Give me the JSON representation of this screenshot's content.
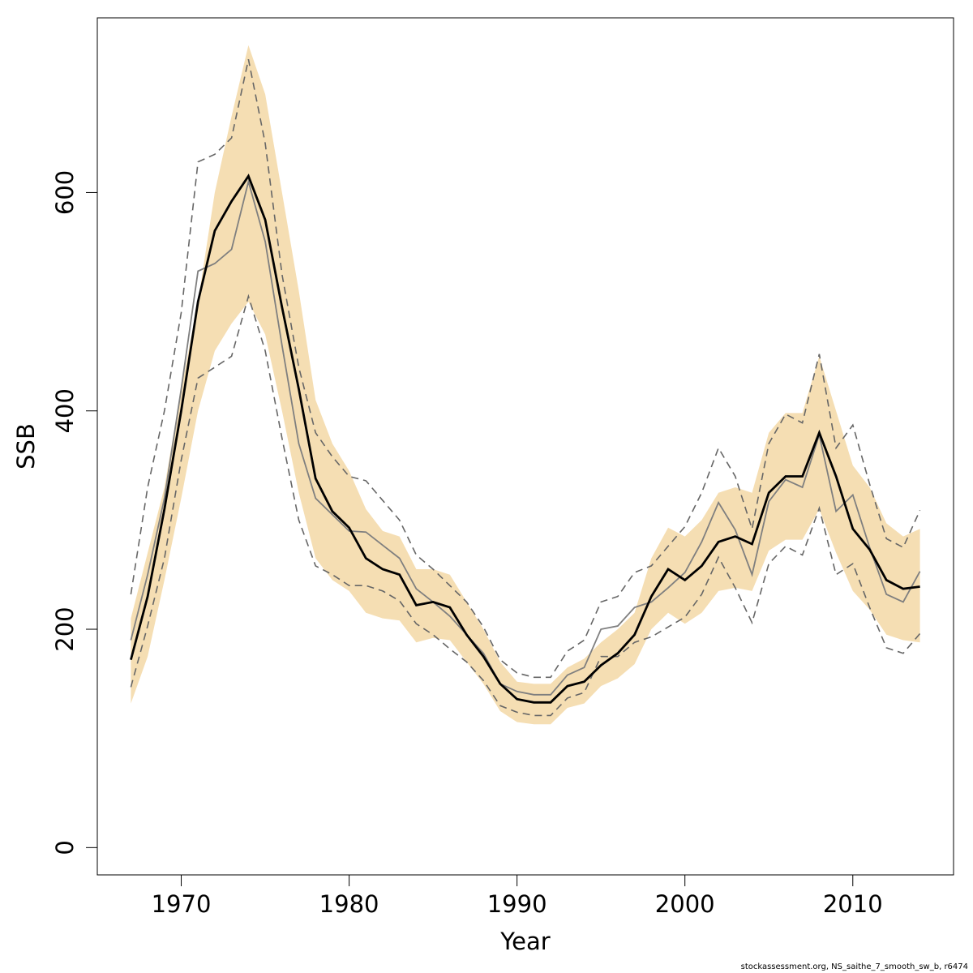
{
  "chart_data": {
    "type": "line",
    "xlabel": "Year",
    "ylabel": "SSB",
    "xlim": [
      1965,
      2016
    ],
    "ylim": [
      -25,
      760
    ],
    "xticks": [
      1970,
      1980,
      1990,
      2000,
      2010
    ],
    "yticks": [
      0,
      200,
      400,
      600
    ],
    "x": [
      1967,
      1968,
      1969,
      1970,
      1971,
      1972,
      1973,
      1974,
      1975,
      1976,
      1977,
      1978,
      1979,
      1980,
      1981,
      1982,
      1983,
      1984,
      1985,
      1986,
      1987,
      1988,
      1989,
      1990,
      1991,
      1992,
      1993,
      1994,
      1995,
      1996,
      1997,
      1998,
      1999,
      2000,
      2001,
      2002,
      2003,
      2004,
      2005,
      2006,
      2007,
      2008,
      2009,
      2010,
      2011,
      2012,
      2013,
      2014
    ],
    "series": [
      {
        "role": "confidence-band-upper",
        "color": "#f5deb3",
        "values": [
          210,
          270,
          330,
          420,
          500,
          600,
          670,
          735,
          690,
          600,
          510,
          410,
          370,
          345,
          310,
          290,
          285,
          255,
          255,
          250,
          225,
          200,
          170,
          152,
          150,
          150,
          165,
          173,
          188,
          200,
          215,
          265,
          293,
          285,
          300,
          325,
          330,
          325,
          380,
          398,
          398,
          450,
          400,
          350,
          330,
          297,
          285,
          292
        ]
      },
      {
        "role": "confidence-band-lower",
        "color": "#f5deb3",
        "values": [
          132,
          175,
          245,
          320,
          400,
          455,
          480,
          500,
          470,
          400,
          325,
          265,
          245,
          235,
          215,
          210,
          208,
          188,
          192,
          190,
          170,
          150,
          125,
          115,
          113,
          113,
          128,
          132,
          148,
          155,
          168,
          200,
          215,
          205,
          215,
          235,
          238,
          235,
          272,
          282,
          282,
          310,
          270,
          235,
          218,
          195,
          190,
          188
        ]
      },
      {
        "role": "estimate",
        "color": "#000000",
        "values": [
          172,
          230,
          310,
          400,
          500,
          565,
          592,
          615,
          575,
          495,
          420,
          338,
          308,
          293,
          265,
          255,
          250,
          222,
          225,
          220,
          195,
          175,
          150,
          136,
          133,
          133,
          148,
          152,
          167,
          178,
          195,
          230,
          255,
          245,
          258,
          280,
          285,
          278,
          325,
          340,
          340,
          380,
          340,
          292,
          273,
          245,
          237,
          239
        ]
      },
      {
        "role": "alternative-estimate",
        "color": "#7f7f7f",
        "values": [
          190,
          250,
          320,
          420,
          528,
          535,
          548,
          610,
          555,
          460,
          370,
          320,
          305,
          290,
          289,
          277,
          265,
          237,
          225,
          212,
          195,
          178,
          150,
          143,
          140,
          140,
          158,
          165,
          200,
          203,
          220,
          225,
          238,
          252,
          280,
          316,
          291,
          250,
          317,
          337,
          330,
          378,
          308,
          323,
          275,
          232,
          225,
          253
        ]
      },
      {
        "role": "upper-dashed",
        "color": "#666666",
        "values": [
          232,
          330,
          400,
          490,
          628,
          635,
          650,
          722,
          645,
          525,
          440,
          380,
          358,
          340,
          336,
          318,
          300,
          268,
          255,
          240,
          225,
          202,
          172,
          160,
          156,
          156,
          180,
          190,
          225,
          230,
          252,
          258,
          276,
          294,
          325,
          366,
          340,
          292,
          370,
          397,
          389,
          452,
          366,
          387,
          333,
          283,
          275,
          309
        ]
      },
      {
        "role": "lower-dashed",
        "color": "#666666",
        "values": [
          147,
          203,
          265,
          355,
          430,
          440,
          450,
          505,
          455,
          375,
          300,
          258,
          250,
          240,
          240,
          235,
          226,
          205,
          195,
          182,
          170,
          153,
          130,
          124,
          121,
          121,
          137,
          142,
          175,
          175,
          188,
          193,
          202,
          211,
          232,
          266,
          238,
          206,
          260,
          276,
          268,
          311,
          250,
          260,
          220,
          183,
          178,
          196
        ]
      }
    ]
  },
  "credit": "stockassessment.org, NS_saithe_7_smooth_sw_b, r6474"
}
